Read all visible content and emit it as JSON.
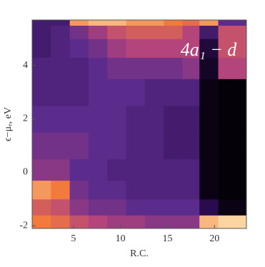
{
  "chart_data": {
    "type": "heatmap",
    "x_label": "R.C.",
    "y_label": "ϵ−μₑ, eV",
    "annotation": "4a₁ − d",
    "xlim": [
      0.6,
      23.4
    ],
    "ylim": [
      -2.1,
      5.7
    ],
    "xticks": [
      5,
      10,
      15,
      20
    ],
    "yticks": [
      -2,
      0,
      2,
      4
    ],
    "xbins": [
      0.6,
      2.6,
      4.6,
      6.6,
      8.6,
      10.6,
      12.6,
      14.6,
      16.6,
      18.4,
      20.4,
      23.4
    ],
    "ybins": [
      -2.1,
      -1.6,
      -1,
      -0.3,
      0.5,
      1.5,
      2.5,
      3.5,
      4.3,
      5,
      5.5,
      5.7
    ],
    "colorscale": [
      "#000000",
      "#2a0c4e",
      "#5c2c8c",
      "#b4447c",
      "#f27a3c",
      "#fff2c0"
    ],
    "z": [
      [
        0.8,
        0.75,
        0.65,
        0.6,
        0.55,
        0.55,
        0.5,
        0.5,
        0.5,
        0.9,
        0.95
      ],
      [
        0.7,
        0.65,
        0.5,
        0.45,
        0.45,
        0.4,
        0.4,
        0.4,
        0.4,
        0.2,
        0.05
      ],
      [
        0.85,
        0.8,
        0.45,
        0.4,
        0.4,
        0.35,
        0.35,
        0.35,
        0.35,
        0.05,
        0.02
      ],
      [
        0.5,
        0.5,
        0.4,
        0.4,
        0.35,
        0.35,
        0.35,
        0.35,
        0.35,
        0.05,
        0.02
      ],
      [
        0.45,
        0.45,
        0.45,
        0.4,
        0.4,
        0.35,
        0.35,
        0.3,
        0.3,
        0.05,
        0.02
      ],
      [
        0.4,
        0.4,
        0.4,
        0.4,
        0.4,
        0.35,
        0.35,
        0.3,
        0.3,
        0.05,
        0.02
      ],
      [
        0.35,
        0.35,
        0.35,
        0.4,
        0.4,
        0.4,
        0.35,
        0.35,
        0.35,
        0.05,
        0.02
      ],
      [
        0.35,
        0.35,
        0.35,
        0.4,
        0.45,
        0.45,
        0.45,
        0.45,
        0.5,
        0.1,
        0.6
      ],
      [
        0.3,
        0.35,
        0.4,
        0.45,
        0.55,
        0.6,
        0.6,
        0.6,
        0.6,
        0.15,
        0.65
      ],
      [
        0.3,
        0.35,
        0.45,
        0.55,
        0.65,
        0.7,
        0.7,
        0.7,
        0.6,
        0.3,
        0.65
      ],
      [
        0.3,
        0.3,
        0.85,
        0.9,
        0.9,
        0.85,
        0.85,
        0.8,
        0.75,
        0.85,
        0.4
      ]
    ]
  }
}
